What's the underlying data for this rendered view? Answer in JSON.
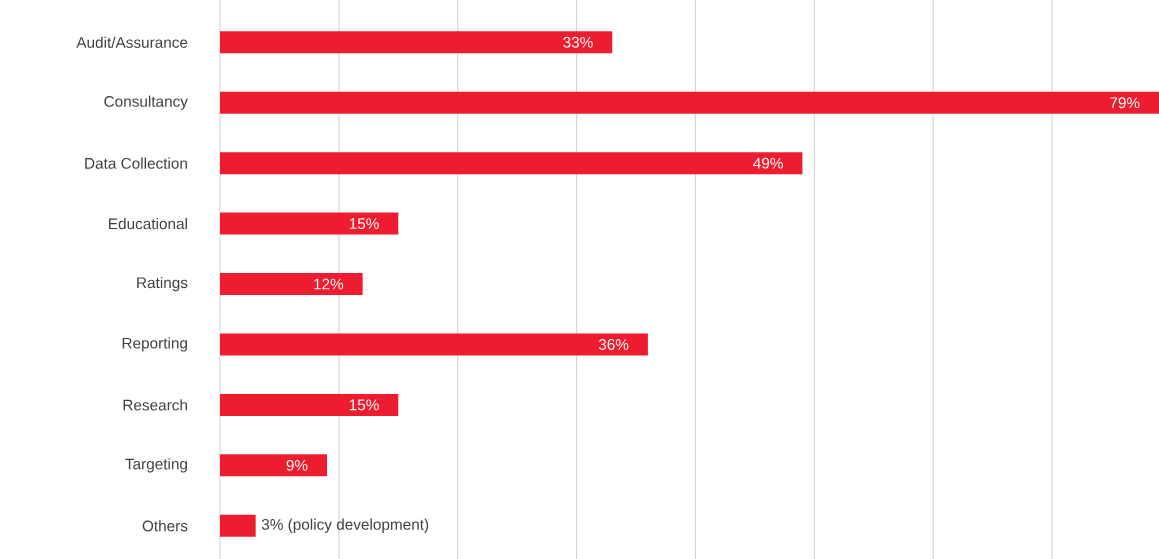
{
  "chart_data": {
    "type": "bar",
    "orientation": "horizontal",
    "categories": [
      "Audit/Assurance",
      "Consultancy",
      "Data Collection",
      "Educational",
      "Ratings",
      "Reporting",
      "Research",
      "Targeting",
      "Others"
    ],
    "values": [
      33,
      79,
      49,
      15,
      12,
      36,
      15,
      9,
      3
    ],
    "value_labels": [
      "33%",
      "79%",
      "49%",
      "15%",
      "12%",
      "36%",
      "15%",
      "9%",
      "3% (policy development)"
    ],
    "color": "#ed1c2e",
    "xlim": [
      0,
      79
    ],
    "grid": "x",
    "tick_labels": "y"
  }
}
